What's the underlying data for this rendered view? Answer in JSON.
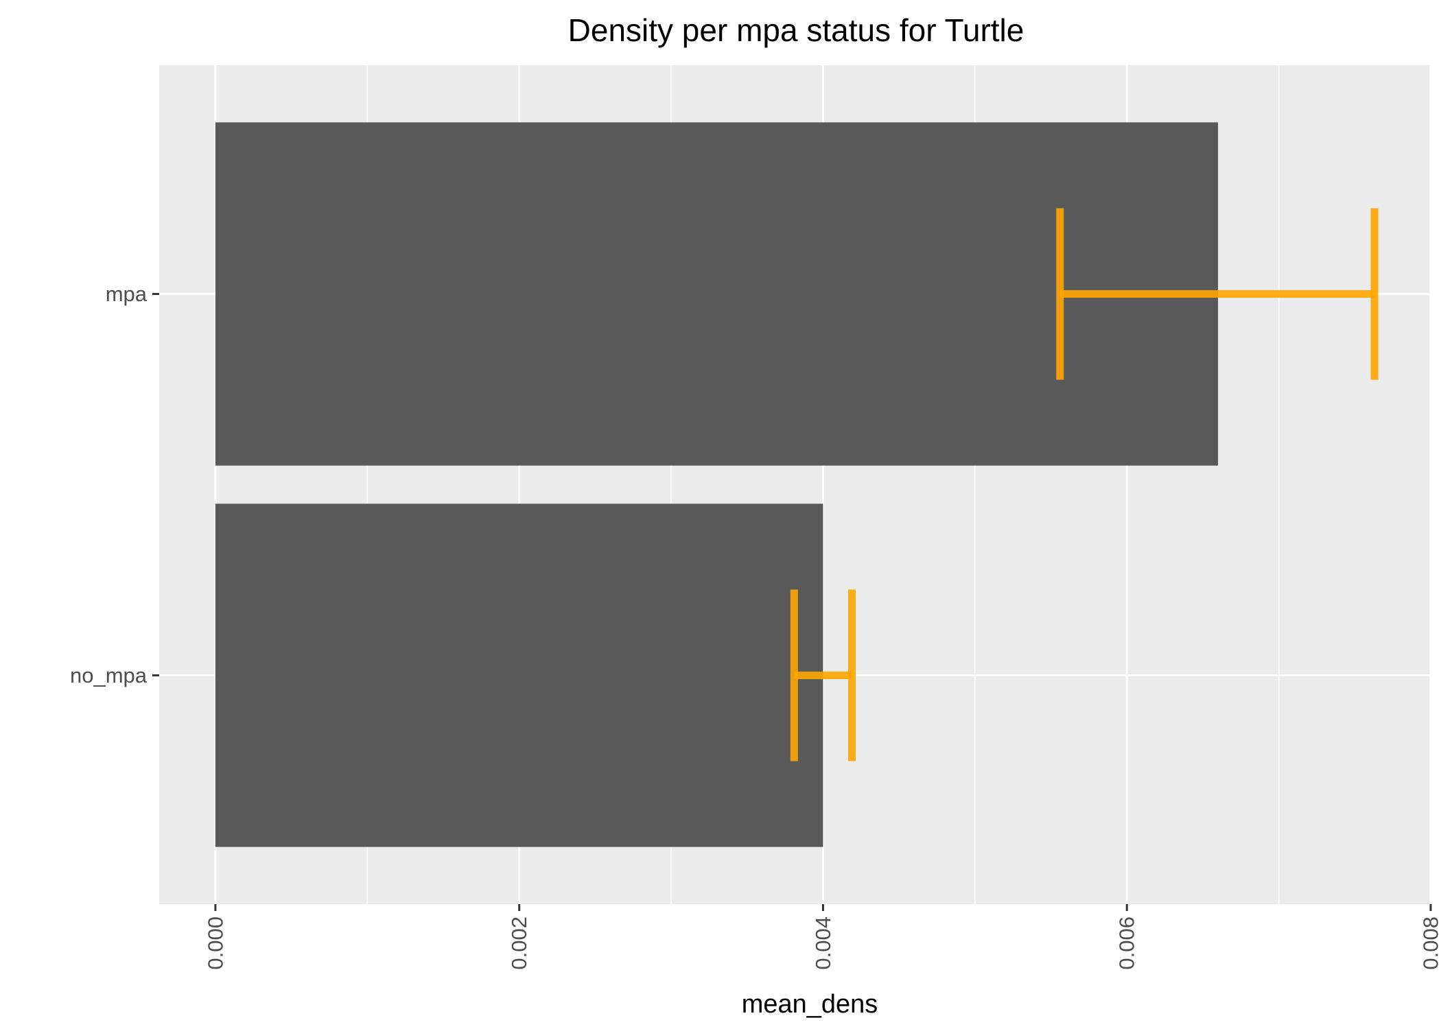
{
  "chart_data": {
    "type": "bar",
    "orientation": "horizontal",
    "title": "Density per mpa status for Turtle",
    "xlabel": "mean_dens",
    "ylabel": "",
    "categories": [
      "mpa",
      "no_mpa"
    ],
    "values": [
      0.0066,
      0.004
    ],
    "error_bars": [
      {
        "category": "mpa",
        "lower": 0.00556,
        "upper": 0.00763
      },
      {
        "category": "no_mpa",
        "lower": 0.00381,
        "upper": 0.00419
      }
    ],
    "xlim": [
      -0.00037,
      0.008
    ],
    "xticks": [
      "0.000",
      "0.002",
      "0.004",
      "0.006",
      "0.008"
    ],
    "xtick_values": [
      0,
      0.002,
      0.004,
      0.006,
      0.008
    ],
    "grid": true,
    "legend": "none",
    "colors": {
      "bar": "#595959",
      "error_bar": "#FFA500",
      "panel_background": "#EBEBEB",
      "grid": "#FFFFFF"
    }
  }
}
